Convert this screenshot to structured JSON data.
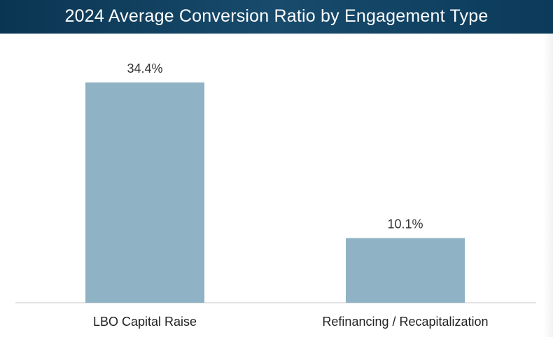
{
  "chart_data": {
    "type": "bar",
    "title": "2024 Average Conversion Ratio by Engagement Type",
    "categories": [
      "LBO Capital Raise",
      "Refinancing / Recapitalization"
    ],
    "values": [
      34.4,
      10.1
    ],
    "data_labels": [
      "34.4%",
      "10.1%"
    ],
    "ylim": [
      0,
      40.5
    ],
    "grid": false,
    "legend": "none",
    "colors": {
      "bar": "#8fb3c5",
      "title_bar": "#0f405f"
    }
  }
}
